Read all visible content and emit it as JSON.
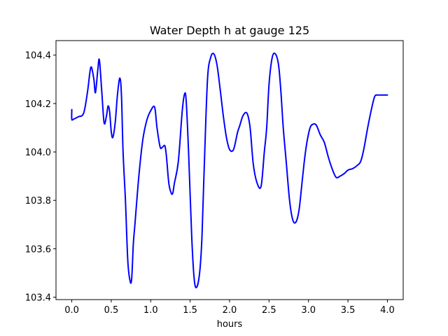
{
  "chart_data": {
    "type": "line",
    "title": "Water Depth h at gauge 125",
    "xlabel": "hours",
    "ylabel": "",
    "xlim": [
      -0.2,
      4.2
    ],
    "ylim": [
      103.39,
      104.46
    ],
    "xticks": [
      0.0,
      0.5,
      1.0,
      1.5,
      2.0,
      2.5,
      3.0,
      3.5,
      4.0
    ],
    "xtick_labels": [
      "0.0",
      "0.5",
      "1.0",
      "1.5",
      "2.0",
      "2.5",
      "3.0",
      "3.5",
      "4.0"
    ],
    "yticks": [
      103.4,
      103.6,
      103.8,
      104.0,
      104.2,
      104.4
    ],
    "ytick_labels": [
      "103.4",
      "103.6",
      "103.8",
      "104.0",
      "104.2",
      "104.4"
    ],
    "grid": false,
    "legend": "none",
    "series": [
      {
        "color": "#0000ff",
        "x": [
          0.0,
          0.0,
          0.02,
          0.08,
          0.15,
          0.2,
          0.23,
          0.25,
          0.28,
          0.3,
          0.33,
          0.35,
          0.38,
          0.41,
          0.44,
          0.46,
          0.48,
          0.5,
          0.52,
          0.55,
          0.58,
          0.61,
          0.63,
          0.65,
          0.68,
          0.71,
          0.74,
          0.76,
          0.78,
          0.8,
          0.85,
          0.9,
          0.95,
          1.0,
          1.05,
          1.08,
          1.12,
          1.15,
          1.18,
          1.2,
          1.23,
          1.26,
          1.28,
          1.3,
          1.35,
          1.4,
          1.43,
          1.45,
          1.48,
          1.52,
          1.55,
          1.58,
          1.62,
          1.65,
          1.68,
          1.72,
          1.76,
          1.8,
          1.84,
          1.88,
          1.92,
          1.96,
          2.0,
          2.05,
          2.1,
          2.13,
          2.17,
          2.22,
          2.26,
          2.3,
          2.35,
          2.4,
          2.44,
          2.47,
          2.5,
          2.54,
          2.58,
          2.62,
          2.65,
          2.68,
          2.72,
          2.76,
          2.8,
          2.84,
          2.88,
          2.92,
          2.95,
          2.98,
          3.02,
          3.06,
          3.1,
          3.15,
          3.2,
          3.25,
          3.3,
          3.35,
          3.4,
          3.45,
          3.5,
          3.55,
          3.58,
          3.62,
          3.66,
          3.7,
          3.75,
          3.8,
          3.84,
          3.88,
          3.92,
          3.96,
          4.0
        ],
        "y": [
          104.175,
          104.135,
          104.135,
          104.145,
          104.16,
          104.25,
          104.33,
          104.35,
          104.3,
          104.245,
          104.34,
          104.38,
          104.25,
          104.12,
          104.15,
          104.19,
          104.165,
          104.085,
          104.06,
          104.12,
          104.24,
          104.305,
          104.23,
          104.0,
          103.8,
          103.55,
          103.465,
          103.48,
          103.62,
          103.7,
          103.9,
          104.05,
          104.13,
          104.17,
          104.185,
          104.1,
          104.02,
          104.02,
          104.025,
          103.98,
          103.87,
          103.83,
          103.83,
          103.87,
          103.96,
          104.17,
          104.24,
          104.21,
          104.0,
          103.65,
          103.48,
          103.44,
          103.5,
          103.65,
          103.95,
          104.3,
          104.39,
          104.405,
          104.36,
          104.26,
          104.15,
          104.06,
          104.01,
          104.01,
          104.08,
          104.11,
          104.15,
          104.16,
          104.1,
          103.95,
          103.87,
          103.86,
          104.0,
          104.1,
          104.28,
          104.39,
          104.405,
          104.36,
          104.25,
          104.1,
          103.95,
          103.8,
          103.72,
          103.71,
          103.76,
          103.88,
          103.97,
          104.04,
          104.1,
          104.115,
          104.11,
          104.07,
          104.04,
          103.98,
          103.93,
          103.895,
          103.9,
          103.91,
          103.925,
          103.93,
          103.935,
          103.945,
          103.96,
          104.01,
          104.1,
          104.18,
          104.23,
          104.235,
          104.235,
          104.235,
          104.235
        ]
      }
    ]
  }
}
